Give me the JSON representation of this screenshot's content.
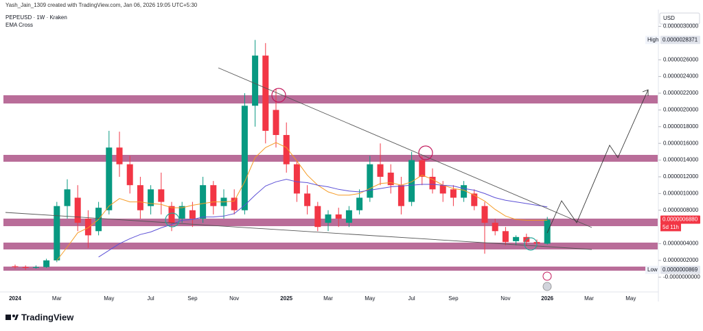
{
  "chart_data": {
    "type": "candlestick",
    "author_line": "Yash_Jain_1309 created with TradingView.com, Jan 06, 2026 19:05 UTC+5:30",
    "symbol_line": "PEPEUSD · 1W · Kraken",
    "indicator_name": "EMA Cross",
    "currency": "USD",
    "brand": "TradingView",
    "categories": [
      "2024",
      null,
      null,
      null,
      "Mar",
      null,
      null,
      null,
      null,
      "May",
      null,
      null,
      null,
      "Jul",
      null,
      null,
      null,
      "Sep",
      null,
      null,
      null,
      "Nov",
      null,
      null,
      null,
      null,
      "2025",
      null,
      null,
      null,
      "Mar",
      null,
      null,
      null,
      "May",
      null,
      null,
      null,
      "Jul",
      null,
      null,
      null,
      "Sep",
      null,
      null,
      null,
      null,
      "Nov",
      null,
      null,
      null,
      "2026",
      null,
      null,
      null,
      "Mar",
      null,
      null,
      null,
      "May",
      null
    ],
    "series": [
      {
        "up_color": "#089981",
        "down_color": "#f23645",
        "open": [
          1.3e-07,
          1.2e-07,
          1.1e-07,
          1.2e-07,
          2e-07,
          8.5e-07,
          9.5e-07,
          7e-07,
          5.5e-07,
          8e-07,
          1.55e-06,
          1.35e-06,
          1.1e-06,
          8.5e-07,
          1.05e-06,
          8.5e-07,
          7e-07,
          8e-07,
          7e-07,
          1.1e-06,
          8.5e-07,
          9.5e-07,
          8e-07,
          2.05e-06,
          2.65e-06,
          2e-06,
          1.7e-06,
          1.35e-06,
          1e-06,
          8.5e-07,
          6.5e-07,
          7.5e-07,
          6.5e-07,
          8e-07,
          9.5e-07,
          1.35e-06,
          1.25e-06,
          1.1e-06,
          9e-07,
          1.4e-06,
          1.2e-06,
          1.1e-06,
          1.05e-06,
          9.5e-07,
          1e-06,
          8.5e-07,
          6.5e-07,
          5.5e-07,
          4.3e-07,
          4.8e-07,
          4.2e-07,
          4e-07,
          null,
          null,
          null,
          null,
          null,
          null,
          null,
          null,
          null
        ],
        "high": [
          1.5e-07,
          1.4e-07,
          1.4e-07,
          2.2e-07,
          9e-07,
          1.17e-06,
          1.1e-06,
          8e-07,
          9e-07,
          1.75e-06,
          1.74e-06,
          1.45e-06,
          1.2e-06,
          1.1e-06,
          1.25e-06,
          9e-07,
          9e-07,
          9e-07,
          1.2e-06,
          1.15e-06,
          1.05e-06,
          1.05e-06,
          2.2e-06,
          2.8371e-06,
          2.8e-06,
          2.25e-06,
          1.85e-06,
          1.4e-06,
          1.1e-06,
          9e-07,
          8e-07,
          8.3e-07,
          8.5e-07,
          1.05e-06,
          1.45e-06,
          1.6e-06,
          1.35e-06,
          1.2e-06,
          1.5e-06,
          1.45e-06,
          1.3e-06,
          1.15e-06,
          1.1e-06,
          1.15e-06,
          1.05e-06,
          9e-07,
          7e-07,
          6e-07,
          5e-07,
          5.2e-07,
          4.5e-07,
          7.2e-07,
          null,
          null,
          null,
          null,
          null,
          null,
          null,
          null,
          null
        ],
        "low": [
          1e-07,
          8.69e-08,
          1e-07,
          1.1e-07,
          1.8e-07,
          7e-07,
          5.5e-07,
          3.5e-07,
          5e-07,
          7.5e-07,
          1.2e-06,
          1e-06,
          7e-07,
          7.5e-07,
          7.5e-07,
          5.5e-07,
          6.5e-07,
          6e-07,
          6.5e-07,
          7.5e-07,
          7e-07,
          7.5e-07,
          7.5e-07,
          1.8e-06,
          1.6e-06,
          1.55e-06,
          1.25e-06,
          9e-07,
          7.5e-07,
          5.5e-07,
          5.5e-07,
          6e-07,
          6e-07,
          7.5e-07,
          9e-07,
          1.1e-06,
          1e-06,
          7.5e-07,
          8.5e-07,
          1.1e-06,
          1e-06,
          9e-07,
          8.5e-07,
          9e-07,
          8e-07,
          2.8e-07,
          5e-07,
          3.8e-07,
          3.8e-07,
          3.7e-07,
          3.5e-07,
          3.9e-07,
          null,
          null,
          null,
          null,
          null,
          null,
          null,
          null,
          null
        ],
        "close": [
          1.2e-07,
          1.1e-07,
          1.2e-07,
          2e-07,
          8.5e-07,
          1.05e-06,
          6.5e-07,
          5e-07,
          8.3e-07,
          1.55e-06,
          1.35e-06,
          1.1e-06,
          8e-07,
          1.05e-06,
          9e-07,
          6.5e-07,
          8.5e-07,
          7e-07,
          1.1e-06,
          8.5e-07,
          9.5e-07,
          8e-07,
          2.05e-06,
          2.65e-06,
          1.75e-06,
          1.7e-06,
          1.35e-06,
          1e-06,
          8.5e-07,
          6e-07,
          7.5e-07,
          7e-07,
          8e-07,
          9.5e-07,
          1.35e-06,
          1.2e-06,
          1.1e-06,
          8.5e-07,
          1.4e-06,
          1.2e-06,
          1.05e-06,
          1e-06,
          9.5e-07,
          1.1e-06,
          8.5e-07,
          6.5e-07,
          5.5e-07,
          4.2e-07,
          4.8e-07,
          4.2e-07,
          4e-07,
          6.88e-07,
          null,
          null,
          null,
          null,
          null,
          null,
          null,
          null,
          null
        ]
      }
    ],
    "indicators": [
      {
        "color": "#f59a23",
        "values": [
          null,
          null,
          null,
          null,
          2e-07,
          3.6e-07,
          5.3e-07,
          5.9e-07,
          6.9e-07,
          8.5e-07,
          9.4e-07,
          9e-07,
          9e-07,
          8.8e-07,
          8.7e-07,
          8.3e-07,
          8.3e-07,
          8.6e-07,
          8.8e-07,
          9e-07,
          9e-07,
          9.1e-07,
          1.14e-06,
          1.43e-06,
          1.55e-06,
          1.61e-06,
          1.55e-06,
          1.39e-06,
          1.22e-06,
          1.1e-06,
          1.02e-06,
          9.8e-07,
          9.8e-07,
          1e-06,
          1.06e-06,
          1.12e-06,
          1.13e-06,
          1.1e-06,
          1.14e-06,
          1.22e-06,
          1.17e-06,
          1.1e-06,
          1.06e-06,
          1.04e-06,
          9.8e-07,
          9.1e-07,
          8.1e-07,
          7.3e-07,
          6.9e-07,
          6.8e-07,
          6.8e-07,
          6.8e-07,
          null,
          null,
          null,
          null,
          null,
          null,
          null,
          null,
          null
        ]
      },
      {
        "color": "#5b4fd6",
        "values": [
          null,
          null,
          null,
          null,
          null,
          null,
          null,
          null,
          2.4e-07,
          3.2e-07,
          4e-07,
          4.6e-07,
          5.1e-07,
          5.4e-07,
          5.9e-07,
          6.3e-07,
          6.8e-07,
          6.9e-07,
          7.2e-07,
          7.2e-07,
          7.3e-07,
          7.6e-07,
          8.6e-07,
          9.8e-07,
          1.09e-06,
          1.14e-06,
          1.17e-06,
          1.14e-06,
          1.13e-06,
          1.1e-06,
          1.08e-06,
          1.05e-06,
          1.03e-06,
          1.02e-06,
          1.04e-06,
          1.06e-06,
          1.08e-06,
          1.09e-06,
          1.1e-06,
          1.11e-06,
          1.11e-06,
          1.1e-06,
          1.09e-06,
          1.06e-06,
          1.04e-06,
          1e-06,
          9.5e-07,
          9.2e-07,
          9e-07,
          8.8e-07,
          8.6e-07,
          8.4e-07,
          null,
          null,
          null,
          null,
          null,
          null,
          null,
          null,
          null
        ]
      }
    ],
    "ylim": [
      -2.1e-07,
      3.069e-06
    ],
    "yticks": [
      {
        "value": 0,
        "label": "-0.0000000000"
      },
      {
        "value": 2e-07,
        "label": "0.0000002000"
      },
      {
        "value": 4e-07,
        "label": "0.0000004000"
      },
      {
        "value": 8e-07,
        "label": "0.0000008000"
      },
      {
        "value": 1e-06,
        "label": "0.0000010000"
      },
      {
        "value": 1.2e-06,
        "label": "0.0000012000"
      },
      {
        "value": 1.4e-06,
        "label": "0.0000014000"
      },
      {
        "value": 1.6e-06,
        "label": "0.0000016000"
      },
      {
        "value": 1.8e-06,
        "label": "0.0000018000"
      },
      {
        "value": 2e-06,
        "label": "0.0000020000"
      },
      {
        "value": 2.2e-06,
        "label": "0.0000022000"
      },
      {
        "value": 2.4e-06,
        "label": "0.0000024000"
      },
      {
        "value": 2.6e-06,
        "label": "0.0000026000"
      },
      {
        "value": 3e-06,
        "label": "0.0000030000"
      }
    ],
    "grid": false,
    "price_labels": [
      {
        "name": "High",
        "value": 2.8371e-06,
        "label": "0.0000028371",
        "color": "#e0e3eb"
      },
      {
        "name": "Low",
        "value": 8.69e-08,
        "label": "0.0000000869",
        "color": "#e0e3eb"
      },
      {
        "name": "5d 11h",
        "value": 6.88e-07,
        "label": "0.0000006880",
        "color": "#f23645"
      }
    ]
  }
}
